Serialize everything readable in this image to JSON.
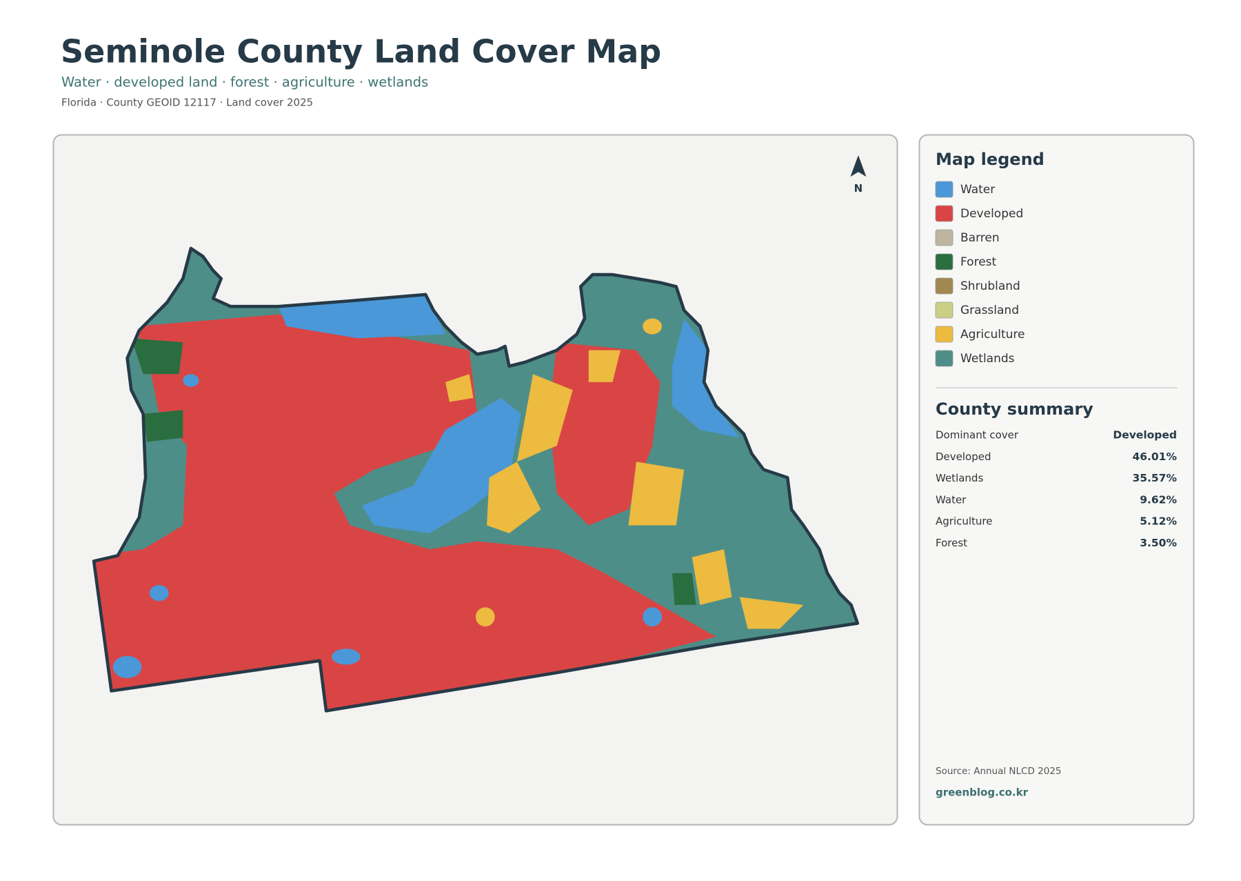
{
  "header": {
    "title": "Seminole County Land Cover Map",
    "subtitle": "Water · developed land · forest · agriculture · wetlands",
    "meta": "Florida · County GEOID 12117 · Land cover 2025"
  },
  "map": {
    "north_label": "N"
  },
  "legend": {
    "title": "Map legend",
    "items": [
      {
        "label": "Water",
        "color": "#4a98d8"
      },
      {
        "label": "Developed",
        "color": "#d94545"
      },
      {
        "label": "Barren",
        "color": "#bdb5a2"
      },
      {
        "label": "Forest",
        "color": "#2a6e40"
      },
      {
        "label": "Shrubland",
        "color": "#a08850"
      },
      {
        "label": "Grassland",
        "color": "#cbcf85"
      },
      {
        "label": "Agriculture",
        "color": "#ecbb40"
      },
      {
        "label": "Wetlands",
        "color": "#4e8e88"
      }
    ]
  },
  "summary": {
    "title": "County summary",
    "rows": [
      [
        "Dominant cover",
        "Developed"
      ],
      [
        "Developed",
        "46.01%"
      ],
      [
        "Wetlands",
        "35.57%"
      ],
      [
        "Water",
        "9.62%"
      ],
      [
        "Agriculture",
        "5.12%"
      ],
      [
        "Forest",
        "3.50%"
      ]
    ]
  },
  "footer": {
    "source": "Source: Annual NLCD 2025",
    "site": "greenblog.co.kr"
  }
}
